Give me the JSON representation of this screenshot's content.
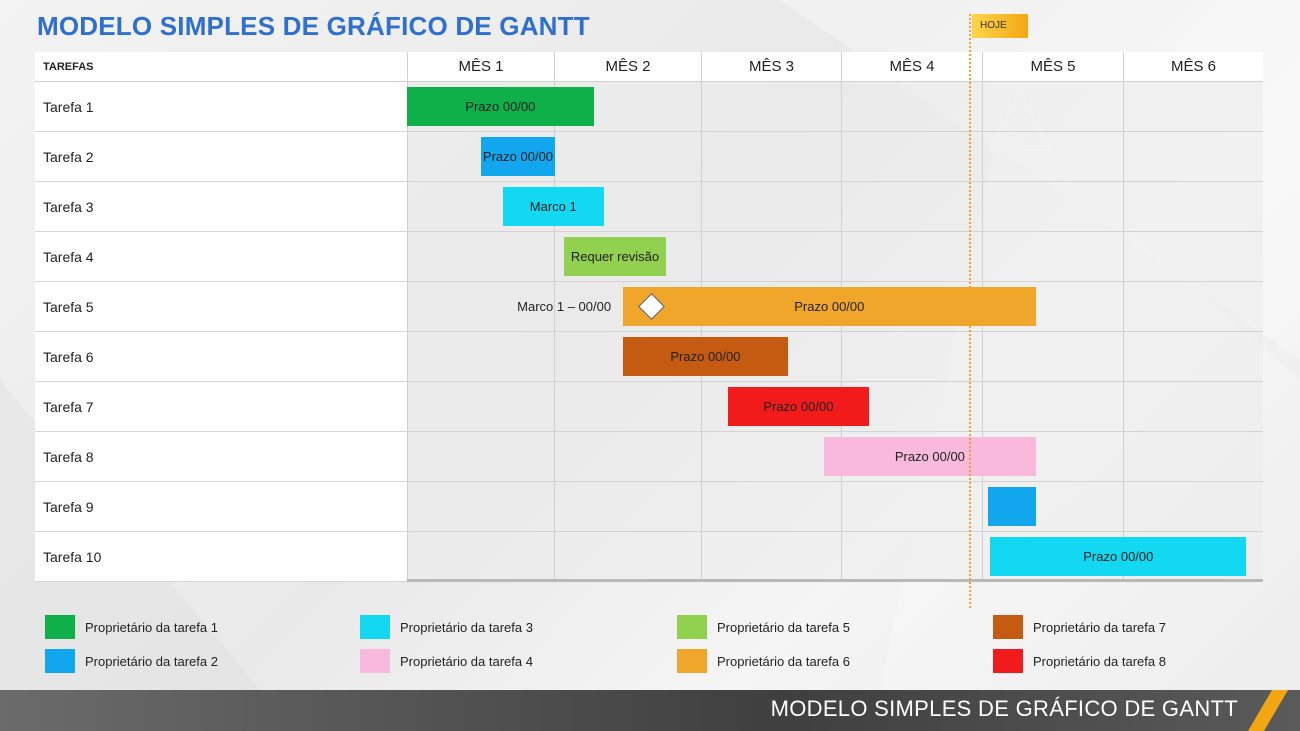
{
  "title": "MODELO SIMPLES DE GRÁFICO DE GANTT",
  "today_label": "HOJE",
  "footer_title": "MODELO SIMPLES DE GRÁFICO DE GANTT",
  "colors": {
    "title": "#2e6fd0",
    "today": "#f3a613",
    "owner1": "#0fb04a",
    "owner2": "#12a6ef",
    "owner3": "#12d8f1",
    "owner4": "#f8b9dc",
    "owner5": "#92d050",
    "owner6": "#f0a62a",
    "owner7": "#c55a11",
    "owner8": "#f21b1b"
  },
  "chart_data": {
    "type": "gantt",
    "task_header": "TAREFAS",
    "months": [
      "MÊS 1",
      "MÊS 2",
      "MÊS 3",
      "MÊS 4",
      "MÊS 5",
      "MÊS 6"
    ],
    "x_unit": "month",
    "x_range": [
      0,
      6
    ],
    "today": 4.38,
    "tasks": [
      {
        "name": "Tarefa 1",
        "start": 0.0,
        "end": 1.27,
        "label": "Prazo 00/00",
        "color": "#0fb04a",
        "label_color": "#222222"
      },
      {
        "name": "Tarefa 2",
        "start": 0.5,
        "end": 1.01,
        "label": "Prazo 00/00",
        "color": "#12a6ef",
        "label_color": "#222222"
      },
      {
        "name": "Tarefa 3",
        "start": 0.65,
        "end": 1.34,
        "label": "Marco 1",
        "color": "#12d8f1",
        "label_color": "#222222"
      },
      {
        "name": "Tarefa 4",
        "start": 1.07,
        "end": 1.76,
        "label": "Requer revisão",
        "color": "#92d050",
        "label_color": "#222222"
      },
      {
        "name": "Tarefa 5",
        "start": 1.47,
        "end": 4.38,
        "label": "Prazo 00/00",
        "color": "#f0a62a",
        "label_color": "#222222",
        "milestone": {
          "at": 1.67,
          "label": "Marco 1 – 00/00"
        }
      },
      {
        "name": "Tarefa 6",
        "start": 1.47,
        "end": 2.62,
        "label": "Prazo 00/00",
        "color": "#c55a11",
        "label_color": "#222222"
      },
      {
        "name": "Tarefa 7",
        "start": 2.19,
        "end": 3.2,
        "label": "Prazo 00/00",
        "color": "#f21b1b",
        "label_color": "#222222"
      },
      {
        "name": "Tarefa 8",
        "start": 2.88,
        "end": 4.38,
        "label": "Prazo 00/00",
        "color": "#f8b9dc",
        "label_color": "#222222"
      },
      {
        "name": "Tarefa 9",
        "start": 4.04,
        "end": 4.38,
        "label": "",
        "color": "#12a6ef",
        "label_color": "#222222"
      },
      {
        "name": "Tarefa 10",
        "start": 4.06,
        "end": 5.88,
        "label": "Prazo 00/00",
        "color": "#12d8f1",
        "label_color": "#222222"
      }
    ]
  },
  "legend": [
    {
      "label": "Proprietário da tarefa 1",
      "color": "#0fb04a"
    },
    {
      "label": "Proprietário da tarefa 2",
      "color": "#12a6ef"
    },
    {
      "label": "Proprietário da tarefa 3",
      "color": "#12d8f1"
    },
    {
      "label": "Proprietário da tarefa 4",
      "color": "#f8b9dc"
    },
    {
      "label": "Proprietário da tarefa 5",
      "color": "#92d050"
    },
    {
      "label": "Proprietário da tarefa 6",
      "color": "#f0a62a"
    },
    {
      "label": "Proprietário da tarefa 7",
      "color": "#c55a11"
    },
    {
      "label": "Proprietário da tarefa 8",
      "color": "#f21b1b"
    }
  ]
}
